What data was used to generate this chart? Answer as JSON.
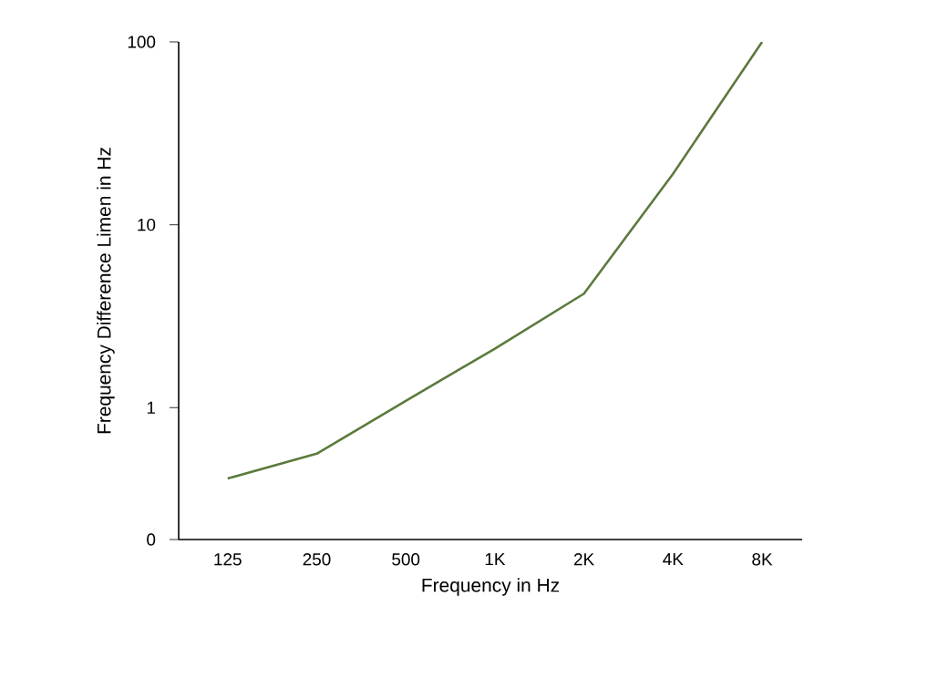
{
  "chart_data": {
    "type": "line",
    "xlabel": "Frequency in Hz",
    "ylabel": "Frequency Difference Limen in Hz",
    "categories": [
      "125",
      "250",
      "500",
      "1K",
      "2K",
      "4K",
      "8K"
    ],
    "series": [
      {
        "color": "#5b7a3c",
        "values": [
          0.41,
          0.56,
          1.09,
          2.1,
          4.2,
          19,
          100
        ]
      }
    ],
    "log": "y",
    "ylim": [
      0.19,
      100
    ],
    "yticks": [
      {
        "value": 0.19,
        "label": "0"
      },
      1,
      10,
      100
    ],
    "grid": false,
    "marker": "none",
    "line_style": "solid"
  }
}
